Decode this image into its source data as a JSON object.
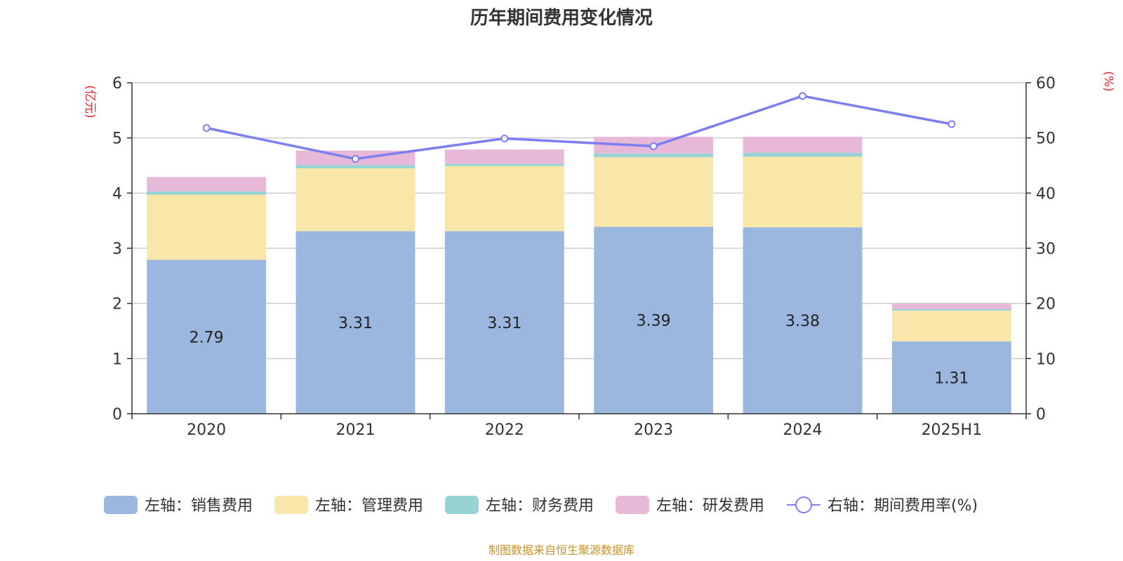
{
  "chart_data": {
    "type": "bar",
    "title": "历年期间费用变化情况",
    "categories": [
      "2020",
      "2021",
      "2022",
      "2023",
      "2024",
      "2025H1"
    ],
    "left_axis": {
      "unit": "(亿元)",
      "ylim": [
        0,
        6
      ],
      "ticks": [
        "0",
        "1",
        "2",
        "3",
        "4",
        "5",
        "6"
      ]
    },
    "right_axis": {
      "unit": "(%)",
      "ylim": [
        0,
        60
      ],
      "ticks": [
        "0",
        "10",
        "20",
        "30",
        "40",
        "50",
        "60"
      ]
    },
    "grid": true,
    "stacked": true,
    "series": [
      {
        "name": "左轴：销售费用",
        "axis": "left",
        "type": "bar",
        "color": "#9bb7e0",
        "values": [
          2.79,
          3.31,
          3.31,
          3.39,
          3.38,
          1.31
        ],
        "labels": [
          "2.79",
          "3.31",
          "3.31",
          "3.39",
          "3.38",
          "1.31"
        ]
      },
      {
        "name": "左轴：管理费用",
        "axis": "left",
        "type": "bar",
        "color": "#f8e7a8",
        "values": [
          1.18,
          1.14,
          1.18,
          1.26,
          1.28,
          0.56
        ]
      },
      {
        "name": "左轴：财务费用",
        "axis": "left",
        "type": "bar",
        "color": "#98d3d3",
        "values": [
          0.06,
          0.06,
          0.04,
          0.07,
          0.07,
          0.03
        ]
      },
      {
        "name": "左轴：研发费用",
        "axis": "left",
        "type": "bar",
        "color": "#e8b8d8",
        "values": [
          0.26,
          0.26,
          0.26,
          0.3,
          0.29,
          0.09
        ]
      },
      {
        "name": "右轴：期间费用率(%)",
        "axis": "right",
        "type": "line",
        "color": "#7b7ff0",
        "values": [
          51.8,
          46.2,
          49.9,
          48.5,
          57.6,
          52.5
        ]
      }
    ],
    "legend_position": "bottom"
  },
  "footer": {
    "source": "制图数据来自恒生聚源数据库"
  }
}
